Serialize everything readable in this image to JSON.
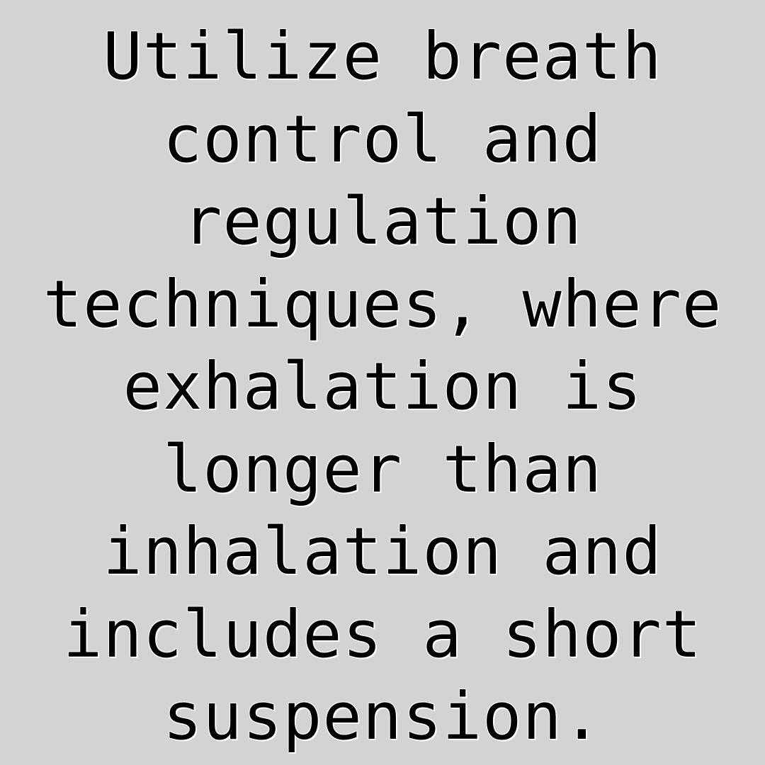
{
  "text": {
    "lines": [
      "Utilize breath",
      "control and",
      "regulation",
      "techniques, where",
      "exhalation is",
      "longer than",
      "inhalation and",
      "includes a short",
      "suspension."
    ]
  }
}
